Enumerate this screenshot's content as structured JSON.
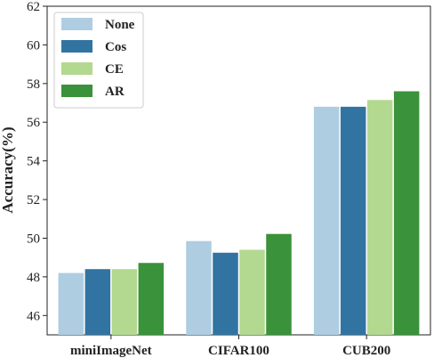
{
  "chart_data": {
    "type": "bar",
    "categories": [
      "miniImageNet",
      "CIFAR100",
      "CUB200"
    ],
    "series": [
      {
        "name": "None",
        "color": "#aecde1",
        "values": [
          48.2,
          49.85,
          56.8
        ]
      },
      {
        "name": "Cos",
        "color": "#3274a1",
        "values": [
          48.4,
          49.25,
          56.8
        ]
      },
      {
        "name": "CE",
        "color": "#b3d88f",
        "values": [
          48.4,
          49.4,
          57.15
        ]
      },
      {
        "name": "AR",
        "color": "#3a923a",
        "values": [
          48.72,
          50.22,
          57.6
        ]
      }
    ],
    "ylabel": "Accuracy(%)",
    "xlabel": "",
    "ylim": [
      45,
      62
    ],
    "yticks": [
      46,
      48,
      50,
      52,
      54,
      56,
      58,
      60,
      62
    ],
    "grid": false,
    "legend_position": "top-left"
  }
}
